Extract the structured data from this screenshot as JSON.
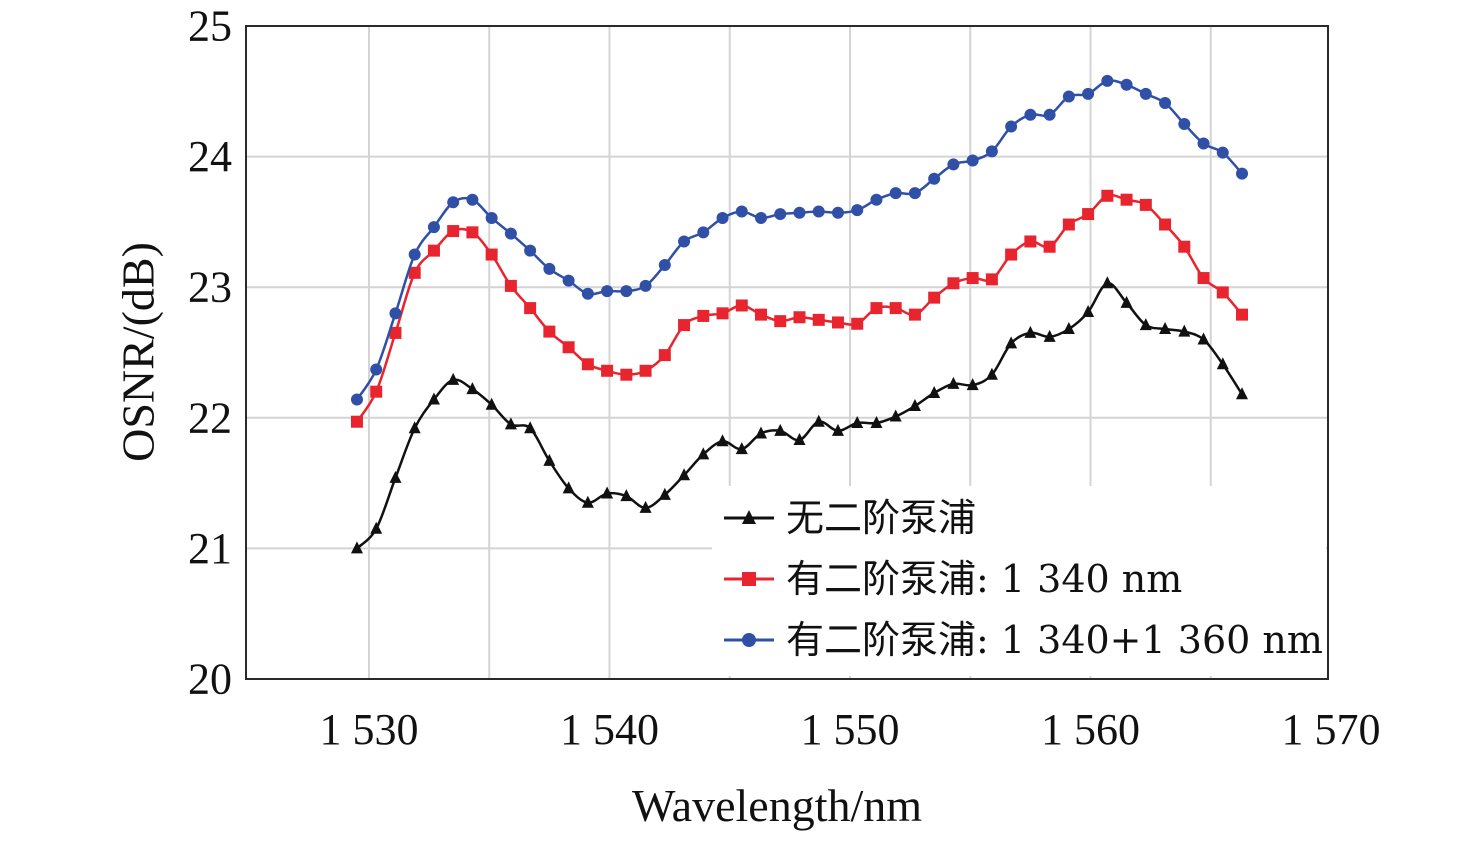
{
  "chart_data": {
    "type": "line",
    "xlabel": "Wavelength/nm",
    "ylabel": "OSNR/(dB)",
    "xlim": [
      1525,
      1570
    ],
    "ylim": [
      20,
      25
    ],
    "x_ticks": [
      1530,
      1540,
      1550,
      1560,
      1570
    ],
    "x_tick_labels": [
      "1 530",
      "1 540",
      "1 550",
      "1 560",
      "1 570"
    ],
    "y_ticks": [
      20,
      21,
      22,
      23,
      24,
      25
    ],
    "y_tick_labels": [
      "20",
      "21",
      "22",
      "23",
      "24",
      "25"
    ],
    "grid": true,
    "legend_position": "lower-right",
    "x": [
      1529.5,
      1530.3,
      1531.1,
      1531.9,
      1532.7,
      1533.5,
      1534.3,
      1535.1,
      1535.9,
      1536.7,
      1537.5,
      1538.3,
      1539.1,
      1539.9,
      1540.7,
      1541.5,
      1542.3,
      1543.1,
      1543.9,
      1544.7,
      1545.5,
      1546.3,
      1547.1,
      1547.9,
      1548.7,
      1549.5,
      1550.3,
      1551.1,
      1551.9,
      1552.7,
      1553.5,
      1554.3,
      1555.1,
      1555.9,
      1556.7,
      1557.5,
      1558.3,
      1559.1,
      1559.9,
      1560.7,
      1561.5,
      1562.3,
      1563.1,
      1563.9,
      1564.7,
      1565.5,
      1566.3
    ],
    "series": [
      {
        "name": "无二阶泵浦",
        "color": "#111111",
        "marker": "triangle",
        "values": [
          21.0,
          21.15,
          21.54,
          21.92,
          22.14,
          22.29,
          22.22,
          22.1,
          21.95,
          21.92,
          21.67,
          21.46,
          21.35,
          21.42,
          21.4,
          21.31,
          21.41,
          21.56,
          21.72,
          21.82,
          21.76,
          21.88,
          21.9,
          21.83,
          21.97,
          21.9,
          21.96,
          21.96,
          22.01,
          22.09,
          22.19,
          22.26,
          22.25,
          22.33,
          22.57,
          22.65,
          22.62,
          22.68,
          22.81,
          23.03,
          22.88,
          22.71,
          22.68,
          22.66,
          22.6,
          22.41,
          22.18
        ]
      },
      {
        "name": "有二阶泵浦: 1 340 nm",
        "color": "#e8252f",
        "marker": "square",
        "values": [
          21.97,
          22.2,
          22.65,
          23.11,
          23.28,
          23.43,
          23.42,
          23.25,
          23.01,
          22.84,
          22.66,
          22.54,
          22.41,
          22.36,
          22.33,
          22.36,
          22.48,
          22.71,
          22.78,
          22.8,
          22.86,
          22.79,
          22.74,
          22.77,
          22.75,
          22.73,
          22.72,
          22.84,
          22.84,
          22.79,
          22.92,
          23.03,
          23.07,
          23.06,
          23.25,
          23.35,
          23.31,
          23.48,
          23.56,
          23.7,
          23.67,
          23.63,
          23.48,
          23.31,
          23.07,
          22.96,
          22.79
        ]
      },
      {
        "name": "有二阶泵浦: 1 340+1 360 nm",
        "color": "#3050a8",
        "marker": "circle",
        "values": [
          22.14,
          22.37,
          22.8,
          23.25,
          23.46,
          23.65,
          23.67,
          23.53,
          23.41,
          23.28,
          23.14,
          23.05,
          22.95,
          22.97,
          22.97,
          23.01,
          23.17,
          23.35,
          23.42,
          23.53,
          23.58,
          23.53,
          23.56,
          23.57,
          23.58,
          23.57,
          23.59,
          23.67,
          23.72,
          23.72,
          23.83,
          23.94,
          23.97,
          24.04,
          24.23,
          24.32,
          24.32,
          24.46,
          24.48,
          24.58,
          24.55,
          24.48,
          24.41,
          24.25,
          24.1,
          24.03,
          23.87
        ]
      }
    ]
  }
}
